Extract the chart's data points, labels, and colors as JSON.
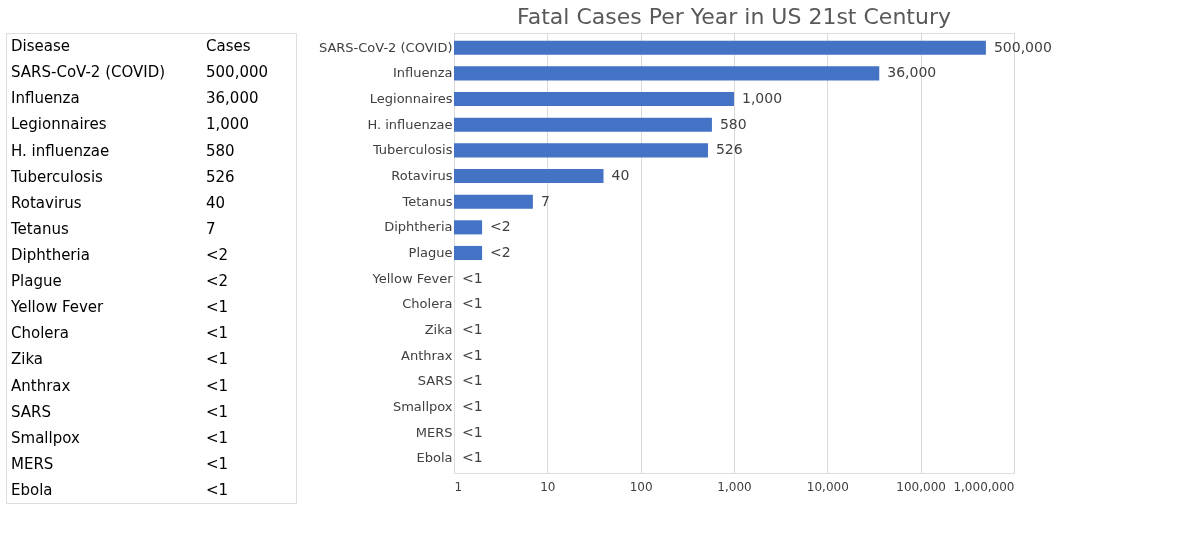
{
  "chart_data": [
    {
      "type": "other",
      "annotations": [
        "Disease",
        "Cases"
      ],
      "categories": [
        "SARS-CoV-2 (COVID)",
        "Influenza",
        "Legionnaires",
        "H. influenzae",
        "Tuberculosis",
        "Rotavirus",
        "Tetanus",
        "Diphtheria",
        "Plague",
        "Yellow Fever",
        "Cholera",
        "Zika",
        "Anthrax",
        "SARS",
        "Smallpox",
        "MERS",
        "Ebola"
      ],
      "value_labels": [
        "500,000",
        "36,000",
        "1,000",
        "580",
        "526",
        "40",
        "7",
        "<2",
        "<2",
        "<1",
        "<1",
        "<1",
        "<1",
        "<1",
        "<1",
        "<1",
        "<1"
      ]
    },
    {
      "type": "bar",
      "title": "Fatal Cases Per Year in US 21st Century",
      "orientation": "horizontal",
      "log": "x",
      "grid": "x",
      "categories": [
        "SARS-CoV-2 (COVID)",
        "Influenza",
        "Legionnaires",
        "H. influenzae",
        "Tuberculosis",
        "Rotavirus",
        "Tetanus",
        "Diphtheria",
        "Plague",
        "Yellow Fever",
        "Cholera",
        "Zika",
        "Anthrax",
        "SARS",
        "Smallpox",
        "MERS",
        "Ebola"
      ],
      "values": [
        500000,
        36000,
        1000,
        580,
        526,
        40,
        7,
        2,
        2,
        1,
        1,
        1,
        1,
        1,
        1,
        1,
        1
      ],
      "value_labels": [
        "500,000",
        "36,000",
        "1,000",
        "580",
        "526",
        "40",
        "7",
        "<2",
        "<2",
        "<1",
        "<1",
        "<1",
        "<1",
        "<1",
        "<1",
        "<1",
        "<1"
      ],
      "color": "#4472c4",
      "xlim": [
        1,
        1000000
      ],
      "xticks": [
        {
          "value": 1,
          "label": "1"
        },
        {
          "value": 10,
          "label": "10"
        },
        {
          "value": 100,
          "label": "100"
        },
        {
          "value": 1000,
          "label": "1,000"
        },
        {
          "value": 10000,
          "label": "10,000"
        },
        {
          "value": 100000,
          "label": "100,000"
        },
        {
          "value": 1000000,
          "label": "1,000,000"
        }
      ]
    }
  ]
}
